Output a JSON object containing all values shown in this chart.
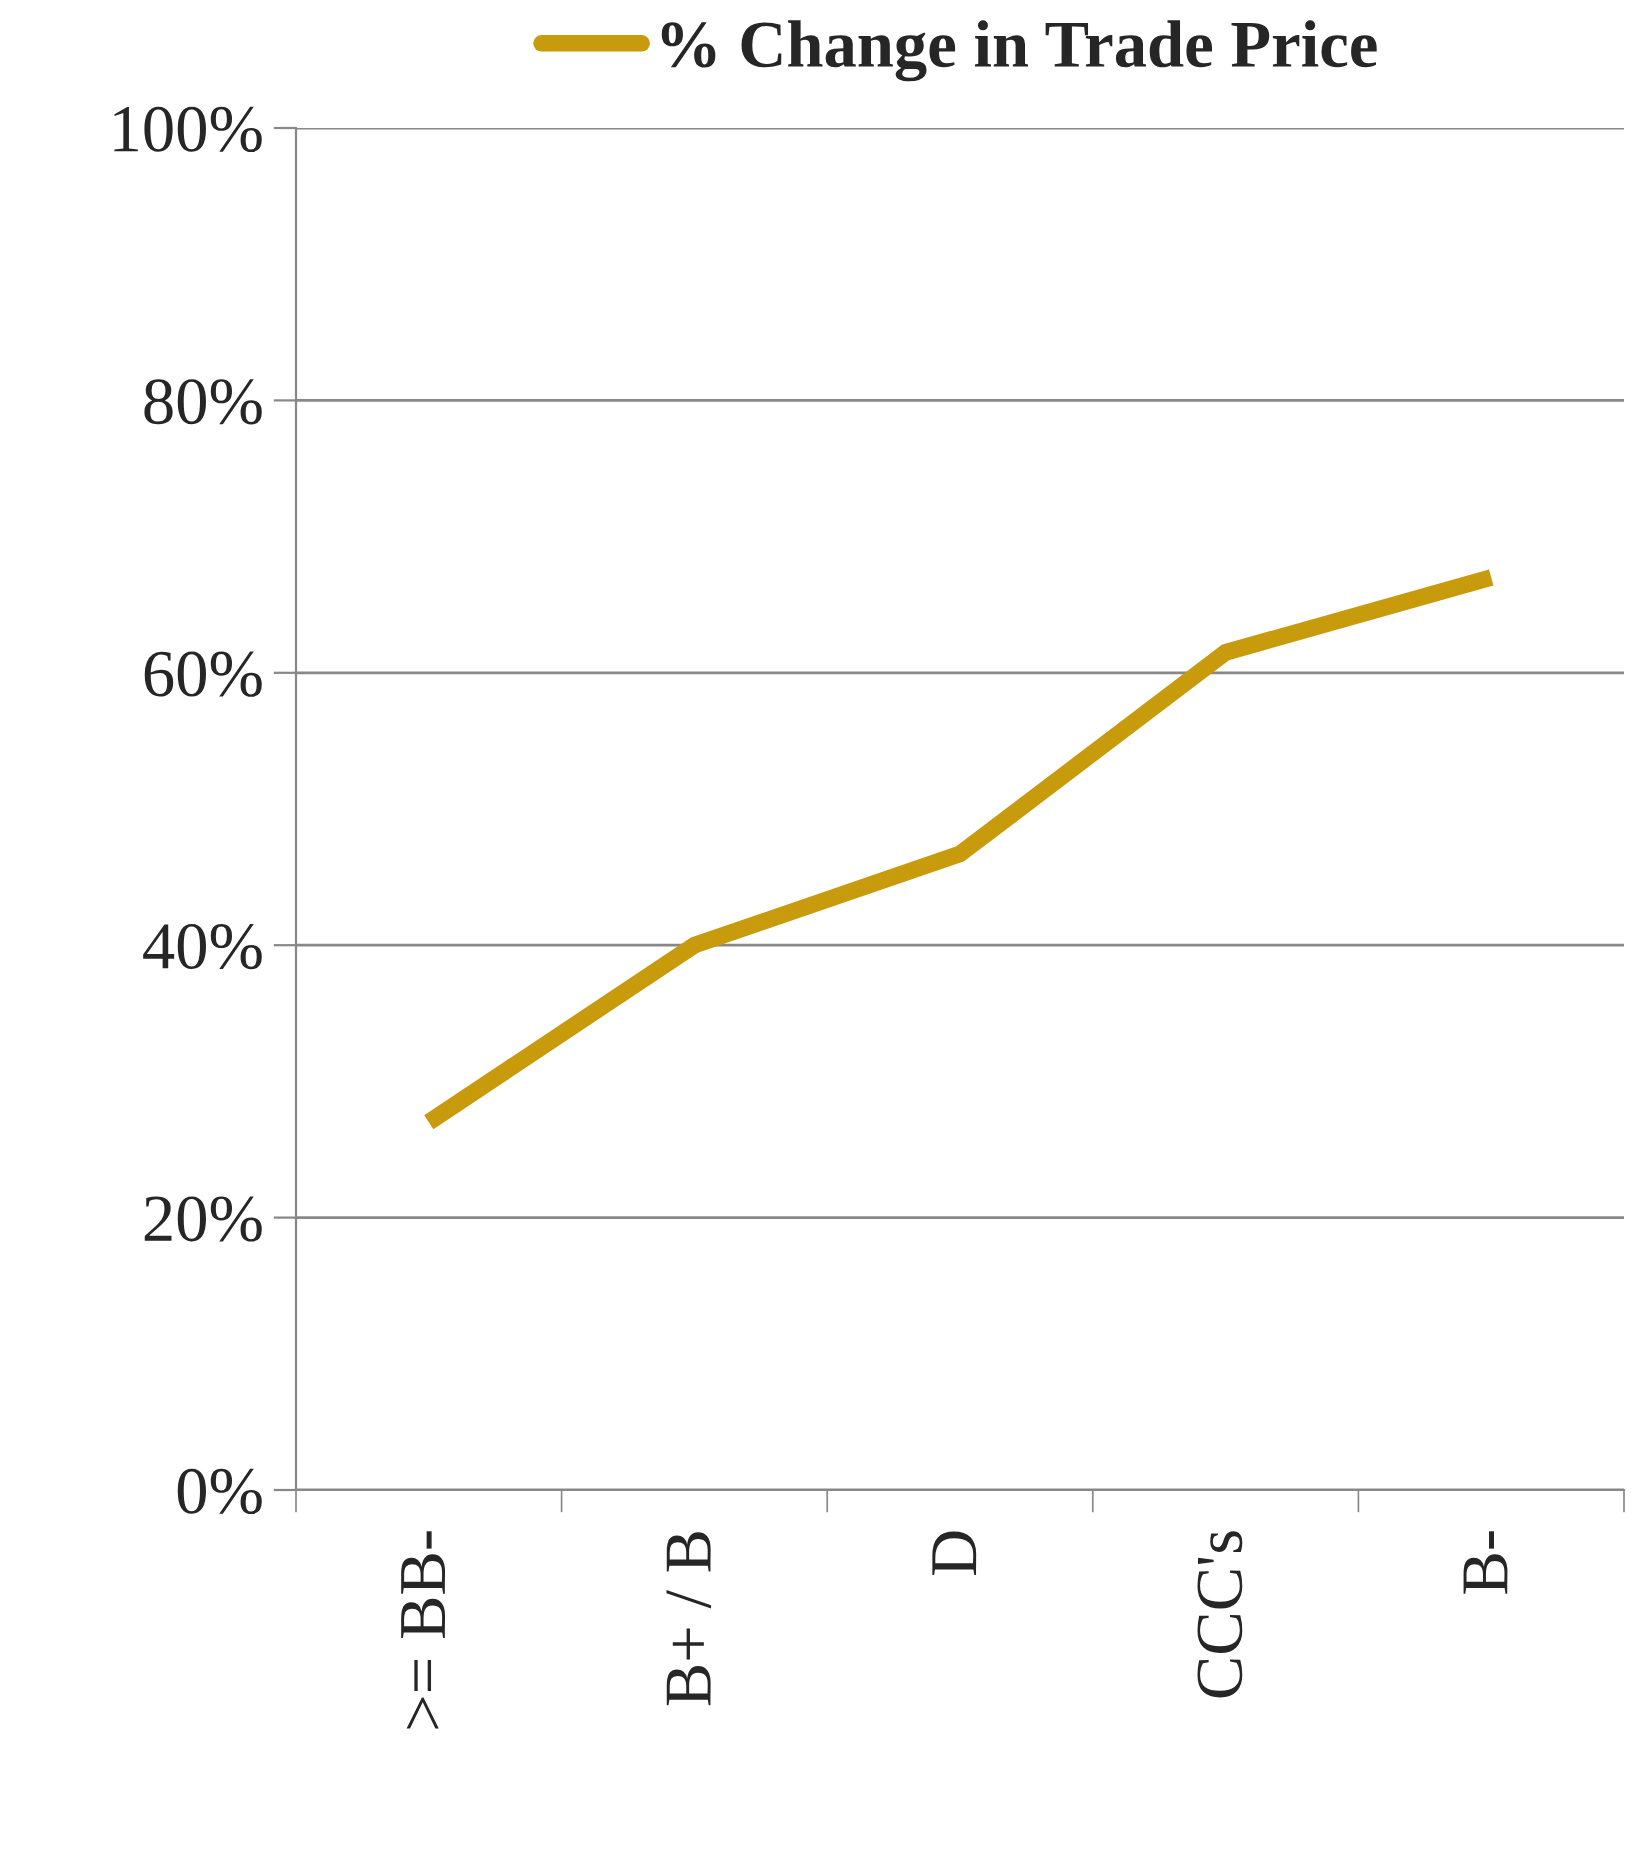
{
  "chart_data": {
    "type": "line",
    "categories": [
      ">= BB-",
      "B+ / B",
      "D",
      "CCC's",
      "B-"
    ],
    "series": [
      {
        "name": "% Change in Trade Price",
        "color": "#c89b0c",
        "values": [
          27,
          40,
          46.7,
          61.5,
          67
        ]
      }
    ],
    "ylim": [
      0,
      100
    ],
    "yticks": [
      {
        "value": 0,
        "label": "0%"
      },
      {
        "value": 20,
        "label": "20%"
      },
      {
        "value": 40,
        "label": "40%"
      },
      {
        "value": 60,
        "label": "60%"
      },
      {
        "value": 80,
        "label": "80%"
      },
      {
        "value": 100,
        "label": "100%"
      }
    ],
    "grid": "y",
    "legend": "top",
    "marker": "none",
    "line_style": "solid"
  }
}
